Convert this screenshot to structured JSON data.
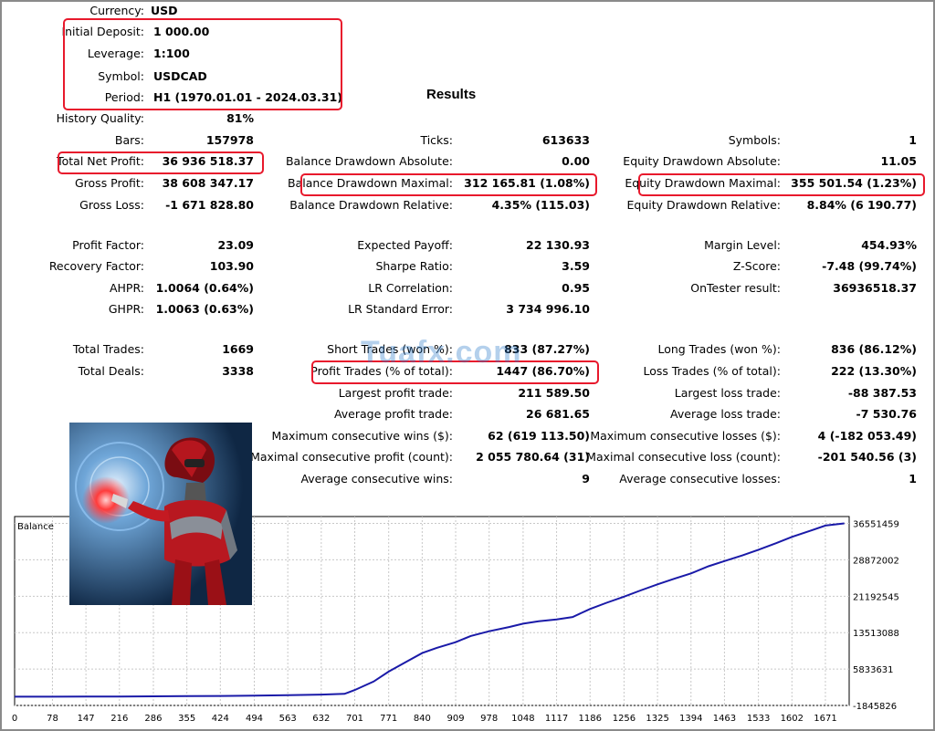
{
  "header": {
    "currency": {
      "label": "Currency:",
      "value": "USD"
    },
    "initial_deposit": {
      "label": "Initial Deposit:",
      "value": "1 000.00"
    },
    "leverage": {
      "label": "Leverage:",
      "value": "1:100"
    },
    "symbol": {
      "label": "Symbol:",
      "value": "USDCAD"
    },
    "period": {
      "label": "Period:",
      "value": "H1 (1970.01.01 - 2024.03.31)"
    },
    "results_title": "Results",
    "history_quality": {
      "label": "History Quality:",
      "value": "81%"
    }
  },
  "stats": {
    "bars": {
      "label": "Bars:",
      "value": "157978"
    },
    "ticks": {
      "label": "Ticks:",
      "value": "613633"
    },
    "symbols": {
      "label": "Symbols:",
      "value": "1"
    },
    "total_net_profit": {
      "label": "Total Net Profit:",
      "value": "36 936 518.37"
    },
    "balance_dd_abs": {
      "label": "Balance Drawdown Absolute:",
      "value": "0.00"
    },
    "equity_dd_abs": {
      "label": "Equity Drawdown Absolute:",
      "value": "11.05"
    },
    "gross_profit": {
      "label": "Gross Profit:",
      "value": "38 608 347.17"
    },
    "balance_dd_max": {
      "label": "Balance Drawdown Maximal:",
      "value": "312 165.81 (1.08%)"
    },
    "equity_dd_max": {
      "label": "Equity Drawdown Maximal:",
      "value": "355 501.54 (1.23%)"
    },
    "gross_loss": {
      "label": "Gross Loss:",
      "value": "-1 671 828.80"
    },
    "balance_dd_rel": {
      "label": "Balance Drawdown Relative:",
      "value": "4.35% (115.03)"
    },
    "equity_dd_rel": {
      "label": "Equity Drawdown Relative:",
      "value": "8.84% (6 190.77)"
    },
    "profit_factor": {
      "label": "Profit Factor:",
      "value": "23.09"
    },
    "expected_payoff": {
      "label": "Expected Payoff:",
      "value": "22 130.93"
    },
    "margin_level": {
      "label": "Margin Level:",
      "value": "454.93%"
    },
    "recovery_factor": {
      "label": "Recovery Factor:",
      "value": "103.90"
    },
    "sharpe_ratio": {
      "label": "Sharpe Ratio:",
      "value": "3.59"
    },
    "z_score": {
      "label": "Z-Score:",
      "value": "-7.48 (99.74%)"
    },
    "ahpr": {
      "label": "AHPR:",
      "value": "1.0064 (0.64%)"
    },
    "lr_correlation": {
      "label": "LR Correlation:",
      "value": "0.95"
    },
    "ontester": {
      "label": "OnTester result:",
      "value": "36936518.37"
    },
    "ghpr": {
      "label": "GHPR:",
      "value": "1.0063 (0.63%)"
    },
    "lr_std_error": {
      "label": "LR Standard Error:",
      "value": "3 734 996.10"
    },
    "total_trades": {
      "label": "Total Trades:",
      "value": "1669"
    },
    "short_trades": {
      "label": "Short Trades (won %):",
      "value": "833 (87.27%)"
    },
    "long_trades": {
      "label": "Long Trades (won %):",
      "value": "836 (86.12%)"
    },
    "total_deals": {
      "label": "Total Deals:",
      "value": "3338"
    },
    "profit_trades": {
      "label": "Profit Trades (% of total):",
      "value": "1447 (86.70%)"
    },
    "loss_trades": {
      "label": "Loss Trades (% of total):",
      "value": "222 (13.30%)"
    },
    "largest_profit": {
      "label": "Largest profit trade:",
      "value": "211 589.50"
    },
    "largest_loss": {
      "label": "Largest loss trade:",
      "value": "-88 387.53"
    },
    "avg_profit": {
      "label": "Average profit trade:",
      "value": "26 681.65"
    },
    "avg_loss": {
      "label": "Average loss trade:",
      "value": "-7 530.76"
    },
    "max_consec_wins": {
      "label": "Maximum consecutive wins ($):",
      "value": "62 (619 113.50)"
    },
    "max_consec_losses": {
      "label": "Maximum consecutive losses ($):",
      "value": "4 (-182 053.49)"
    },
    "maximal_consec_profit": {
      "label": "Maximal consecutive profit (count):",
      "value": "2 055 780.64 (31)"
    },
    "maximal_consec_loss": {
      "label": "Maximal consecutive loss (count):",
      "value": "-201 540.56 (3)"
    },
    "avg_consec_wins": {
      "label": "Average consecutive wins:",
      "value": "9"
    },
    "avg_consec_losses": {
      "label": "Average consecutive losses:",
      "value": "1"
    }
  },
  "watermark": "Tuafx.com",
  "colors": {
    "highlight": "#e8192c",
    "balance_line": "#1a1aa8",
    "grid": "#c8c8c8"
  },
  "chart_data": {
    "type": "line",
    "title": "Balance",
    "x_ticks": [
      "0",
      "78",
      "147",
      "216",
      "286",
      "355",
      "424",
      "494",
      "563",
      "632",
      "701",
      "771",
      "840",
      "909",
      "978",
      "1048",
      "1117",
      "1186",
      "1256",
      "1325",
      "1394",
      "1463",
      "1533",
      "1602",
      "1671"
    ],
    "y_ticks": [
      "36551459",
      "28872002",
      "21192545",
      "13513088",
      "5833631",
      "-1845826"
    ],
    "xlim": [
      0,
      1720
    ],
    "ylim": [
      -1845826,
      38000000
    ],
    "series": [
      {
        "x": [
          0,
          78,
          147,
          216,
          286,
          355,
          424,
          494,
          563,
          632,
          680,
          701,
          740,
          771,
          810,
          840,
          870,
          909,
          940,
          978,
          1020,
          1048,
          1080,
          1117,
          1150,
          1186,
          1220,
          1256,
          1290,
          1325,
          1360,
          1394,
          1430,
          1463,
          1500,
          1533,
          1570,
          1602,
          1640,
          1671,
          1710
        ],
        "y": [
          1000,
          5000,
          20000,
          40000,
          70000,
          110000,
          160000,
          230000,
          320000,
          450000,
          600000,
          1400000,
          3200000,
          5300000,
          7500000,
          9200000,
          10300000,
          11500000,
          12800000,
          13800000,
          14700000,
          15400000,
          15900000,
          16300000,
          16800000,
          18500000,
          19800000,
          21100000,
          22400000,
          23700000,
          24900000,
          26000000,
          27500000,
          28600000,
          29800000,
          31000000,
          32400000,
          33700000,
          35000000,
          36100000,
          36551459
        ]
      }
    ]
  }
}
